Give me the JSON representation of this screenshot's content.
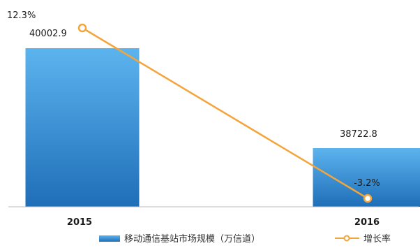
{
  "chart_data": {
    "type": "bar",
    "title": "",
    "xlabel": "",
    "ylabel": "",
    "categories": [
      "2015",
      "2016"
    ],
    "series": [
      {
        "name": "移动通信基站市场规模（万信道）",
        "type": "bar",
        "values": [
          40002.9,
          38722.8
        ],
        "value_labels": [
          "40002.9",
          "38722.8"
        ]
      },
      {
        "name": "增长率",
        "type": "line",
        "values": [
          12.3,
          -3.2
        ],
        "value_labels": [
          "12.3%",
          "-3.2%"
        ]
      }
    ],
    "legend_position": "bottom",
    "grid": false
  },
  "colors": {
    "bar_top": "#5cb4ee",
    "bar_bottom": "#1f6eb8",
    "line": "#f3a53b",
    "axis": "#bbbbbb"
  }
}
